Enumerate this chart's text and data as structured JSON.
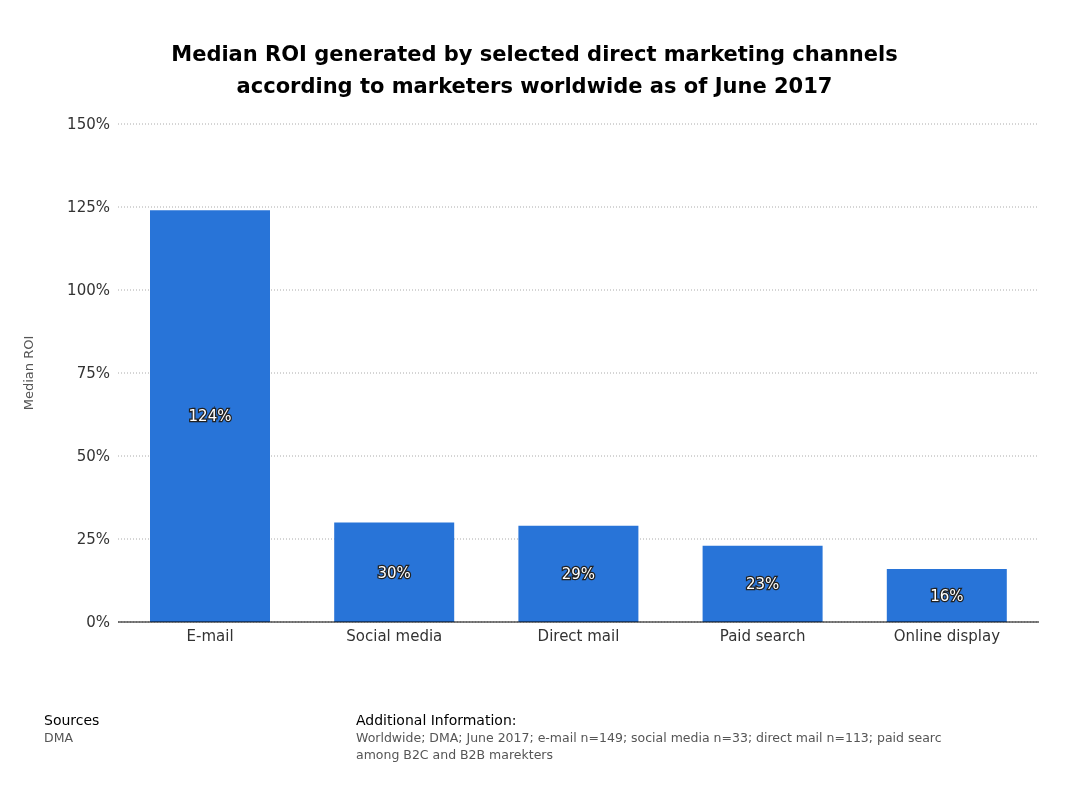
{
  "chart_data": {
    "type": "bar",
    "title": "Median ROI generated by selected direct marketing channels according to marketers worldwide as of June 2017",
    "ylabel": "Median ROI",
    "categories": [
      "E-mail",
      "Social media",
      "Direct mail",
      "Paid search",
      "Online display"
    ],
    "values": [
      124,
      30,
      29,
      23,
      16
    ],
    "color": "#2874d8",
    "value_labels": [
      "124%",
      "30%",
      "29%",
      "23%",
      "16%"
    ],
    "ylim": [
      0,
      150
    ],
    "yticks": [
      {
        "value": 0,
        "label": "0%"
      },
      {
        "value": 25,
        "label": "25%"
      },
      {
        "value": 50,
        "label": "50%"
      },
      {
        "value": 75,
        "label": "75%"
      },
      {
        "value": 100,
        "label": "100%"
      },
      {
        "value": 125,
        "label": "125%"
      },
      {
        "value": 150,
        "label": "150%"
      }
    ],
    "grid": "y",
    "annotations": [
      "Sources",
      "DMA",
      "Additional Information:",
      "Worldwide; DMA; June 2017; e-mail n=149; social media n=33; direct mail n=113; paid searc",
      "among B2C and B2B marekters"
    ]
  }
}
